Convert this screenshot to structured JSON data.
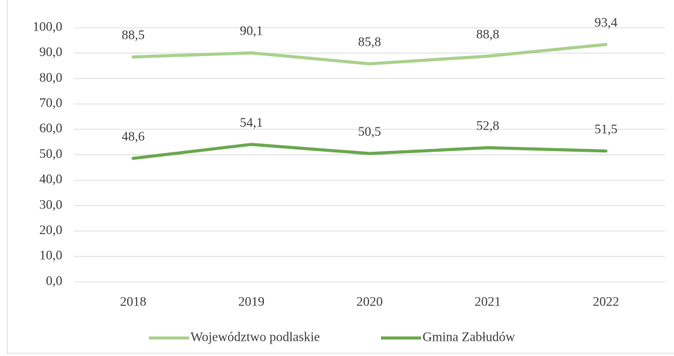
{
  "chart_data": {
    "type": "line",
    "categories": [
      "2018",
      "2019",
      "2020",
      "2021",
      "2022"
    ],
    "series": [
      {
        "name": "Województwo podlaskie",
        "color": "#a9d18e",
        "values": [
          88.5,
          90.1,
          85.8,
          88.8,
          93.4
        ],
        "value_labels": [
          "88,5",
          "90,1",
          "85,8",
          "88,8",
          "93,4"
        ]
      },
      {
        "name": "Gmina Zabłudów",
        "color": "#6aa84f",
        "values": [
          48.6,
          54.1,
          50.5,
          52.8,
          51.5
        ],
        "value_labels": [
          "48,6",
          "54,1",
          "50,5",
          "52,8",
          "51,5"
        ]
      }
    ],
    "ylim": [
      0,
      100
    ],
    "yticks": [
      {
        "value": 0,
        "label": "0,0"
      },
      {
        "value": 10,
        "label": "10,0"
      },
      {
        "value": 20,
        "label": "20,0"
      },
      {
        "value": 30,
        "label": "30,0"
      },
      {
        "value": 40,
        "label": "40,0"
      },
      {
        "value": 50,
        "label": "50,0"
      },
      {
        "value": 60,
        "label": "60,0"
      },
      {
        "value": 70,
        "label": "70,0"
      },
      {
        "value": 80,
        "label": "80,0"
      },
      {
        "value": 90,
        "label": "90,0"
      },
      {
        "value": 100,
        "label": "100,0"
      }
    ],
    "grid": true,
    "legend": "bottom"
  }
}
